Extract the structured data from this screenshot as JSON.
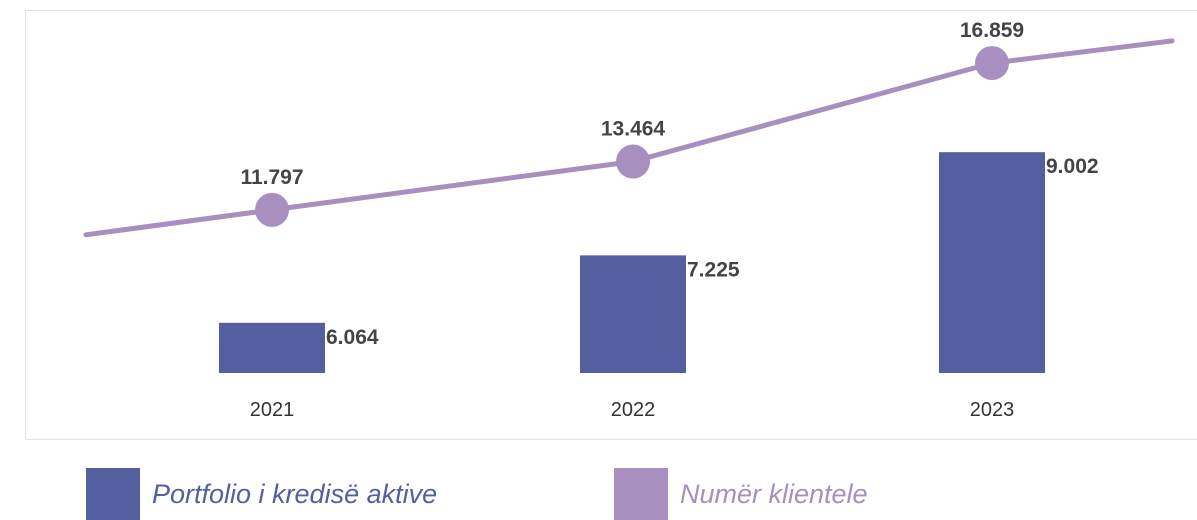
{
  "chart_data": {
    "type": "bar",
    "categories": [
      "2021",
      "2022",
      "2023"
    ],
    "series": [
      {
        "name": "Portfolio i kredisë aktive",
        "kind": "bar",
        "values": [
          6064,
          7225,
          9002
        ],
        "labels": [
          "6.064",
          "7.225",
          "9.002"
        ],
        "color": "#545fa2"
      },
      {
        "name": "Numër klientele",
        "kind": "line",
        "values": [
          11797,
          13464,
          16859
        ],
        "labels": [
          "11.797",
          "13.464",
          "16.859"
        ],
        "color": "#a78fc0"
      }
    ],
    "bar_ylim": [
      5200,
      9900
    ],
    "line_ylim": [
      8000,
      18000
    ],
    "legend_position": "bottom",
    "grid": false
  },
  "legend": {
    "bar_label": "Portfolio i kredisë aktive",
    "line_label": "Numër klientele"
  }
}
